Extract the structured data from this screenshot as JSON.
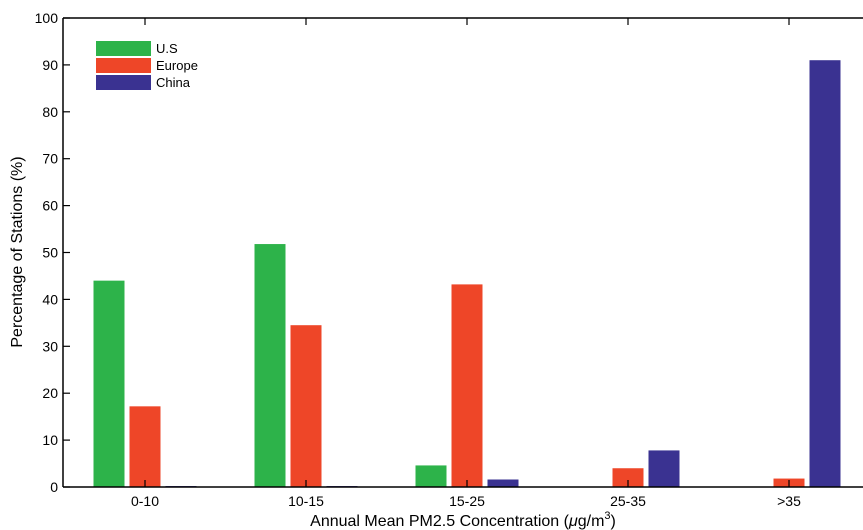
{
  "chart_data": {
    "type": "bar",
    "xlabel": "Annual Mean PM2.5 Concentration (μg/m³)",
    "xlabel_parts": {
      "before": "Annual Mean PM2.5 Concentration (",
      "mu": "μ",
      "after": "g/m",
      "sup": "3",
      "close": ")"
    },
    "ylabel": "Percentage of Stations (%)",
    "ylim": [
      0,
      100
    ],
    "yticks": [
      0,
      10,
      20,
      30,
      40,
      50,
      60,
      70,
      80,
      90,
      100
    ],
    "categories": [
      "0-10",
      "10-15",
      "15-25",
      "25-35",
      ">35"
    ],
    "series": [
      {
        "name": "U.S",
        "color": "#2db34a",
        "values": [
          44.0,
          51.8,
          4.6,
          0.1,
          0.1
        ]
      },
      {
        "name": "Europe",
        "color": "#ee4628",
        "values": [
          17.2,
          34.5,
          43.2,
          4.0,
          1.8
        ]
      },
      {
        "name": "China",
        "color": "#3a3291",
        "values": [
          0.2,
          0.2,
          1.6,
          7.8,
          91.0
        ]
      }
    ],
    "legend_position": "top-left",
    "grid": false
  }
}
